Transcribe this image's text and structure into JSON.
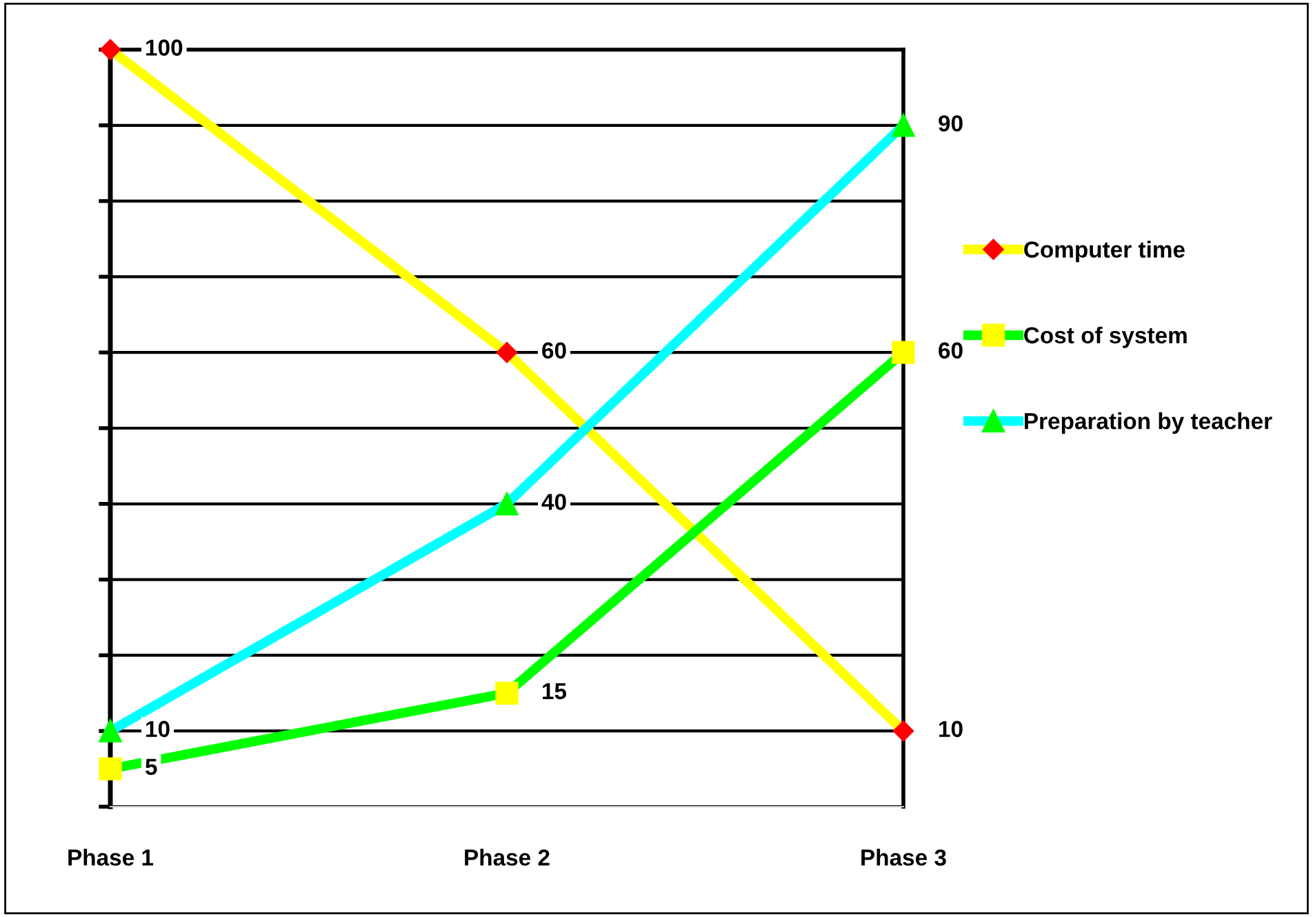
{
  "chart_data": {
    "type": "line",
    "categories": [
      "Phase 1",
      "Phase 2",
      "Phase 3"
    ],
    "series": [
      {
        "name": "Computer time",
        "color": "#ffff00",
        "colors": [
          "#ff0000",
          "#ff0000",
          "#ff0000"
        ],
        "marker": "diamond",
        "values": [
          100,
          60,
          10
        ]
      },
      {
        "name": "Cost of system",
        "color": "#00ff00",
        "colors": [
          "#ffff00",
          "#ffff00",
          "#ffff00"
        ],
        "marker": "square",
        "values": [
          5,
          15,
          60
        ]
      },
      {
        "name": "Preparation by teacher",
        "color": "#00ffff",
        "colors": [
          "#00ff00",
          "#00ff00",
          "#00ff00"
        ],
        "marker": "triangle",
        "values": [
          10,
          40,
          90
        ]
      }
    ],
    "ylim": [
      0,
      100
    ],
    "yticks": [
      {
        "value": 0,
        "label": null
      },
      {
        "value": 10,
        "label": null
      },
      {
        "value": 20,
        "label": null
      },
      {
        "value": 30,
        "label": null
      },
      {
        "value": 40,
        "label": null
      },
      {
        "value": 50,
        "label": null
      },
      {
        "value": 60,
        "label": null
      },
      {
        "value": 70,
        "label": null
      },
      {
        "value": 80,
        "label": null
      },
      {
        "value": 90,
        "label": null
      },
      {
        "value": 100,
        "label": null
      }
    ],
    "tick_labels": "x",
    "grid": "y",
    "data_labels": true,
    "legend": "right",
    "line_style": "solid"
  }
}
